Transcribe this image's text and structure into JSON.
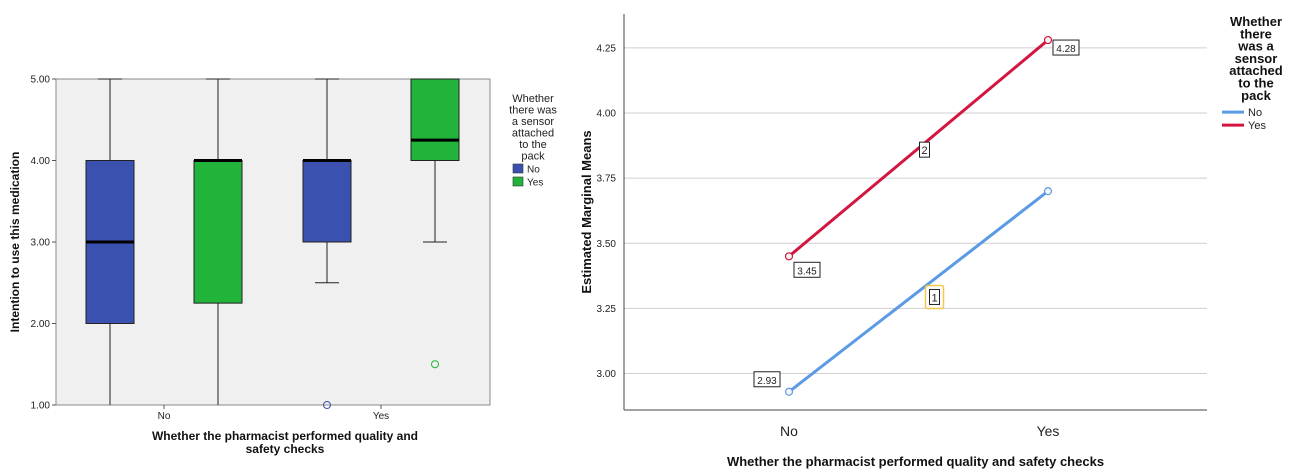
{
  "chart_data": [
    {
      "type": "box",
      "xlabel": "Whether the pharmacist performed quality and safety checks",
      "ylabel": "Intention to use this medication",
      "ylim": [
        1,
        5
      ],
      "yticks": [
        "1.00",
        "2.00",
        "3.00",
        "4.00",
        "5.00"
      ],
      "categories": [
        "No",
        "Yes"
      ],
      "legend": {
        "title": "Whether there was a sensor attached to the pack",
        "placement": "right",
        "entries": [
          {
            "name": "No",
            "color": "#3a51b0"
          },
          {
            "name": "Yes",
            "color": "#22b33a"
          }
        ]
      },
      "series": [
        {
          "name": "No",
          "color": "#3a51b0",
          "boxes": [
            {
              "category": "No",
              "min": 1.0,
              "q1": 2.0,
              "median": 3.0,
              "q3": 4.0,
              "max": 5.0,
              "outliers": []
            },
            {
              "category": "Yes",
              "min": 2.5,
              "q1": 3.0,
              "median": 4.0,
              "q3": 4.0,
              "max": 5.0,
              "outliers": [
                1.0
              ]
            }
          ]
        },
        {
          "name": "Yes",
          "color": "#22b33a",
          "boxes": [
            {
              "category": "No",
              "min": 1.0,
              "q1": 2.25,
              "median": 4.0,
              "q3": 4.0,
              "max": 5.0,
              "outliers": []
            },
            {
              "category": "Yes",
              "min": 3.0,
              "q1": 4.0,
              "median": 4.25,
              "q3": 5.0,
              "max": 5.0,
              "outliers": [
                1.5
              ]
            }
          ]
        }
      ],
      "grid": false
    },
    {
      "type": "line",
      "xlabel": "Whether the pharmacist performed quality and safety checks",
      "ylabel": "Estimated Marginal Means",
      "ylim": [
        2.86,
        4.38
      ],
      "yticks": [
        "3.00",
        "3.25",
        "3.50",
        "3.75",
        "4.00",
        "4.25"
      ],
      "categories": [
        "No",
        "Yes"
      ],
      "grid": true,
      "legend": {
        "title": "Whether there was a sensor attached to the pack",
        "placement": "top-right",
        "entries": [
          {
            "name": "No",
            "color": "#5b9ae4"
          },
          {
            "name": "Yes",
            "color": "#d3163f"
          }
        ]
      },
      "series": [
        {
          "name": "No",
          "color": "#5b9ae4",
          "values": [
            2.93,
            3.7
          ],
          "line_label": "1"
        },
        {
          "name": "Yes",
          "color": "#d3163f",
          "values": [
            3.45,
            4.28
          ],
          "line_label": "2"
        }
      ],
      "data_labels": [
        "2.93",
        "3.45",
        "4.28"
      ]
    }
  ]
}
